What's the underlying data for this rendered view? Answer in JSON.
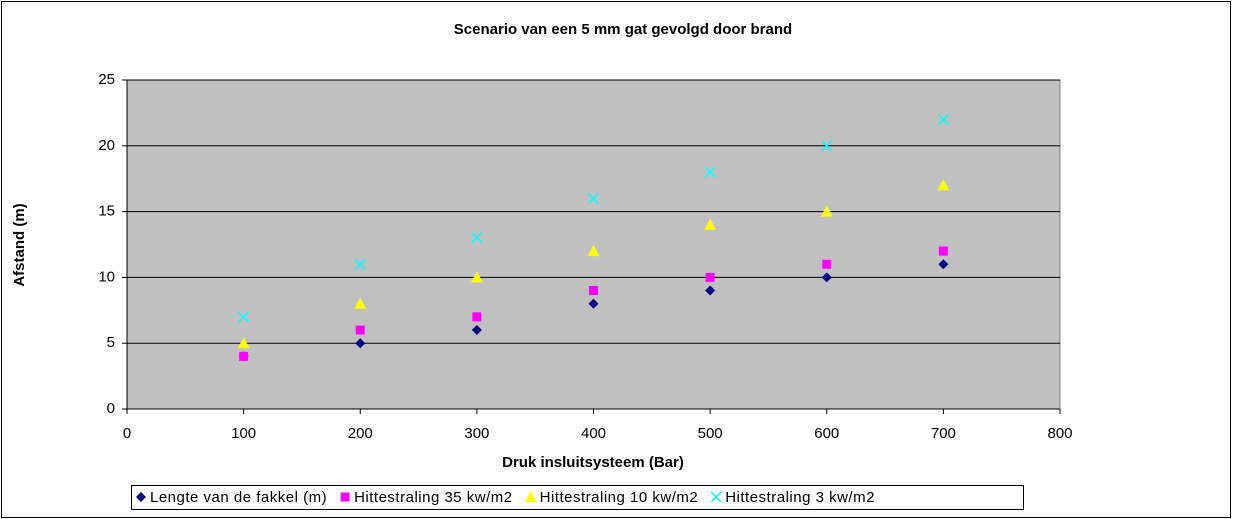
{
  "chart_data": {
    "type": "scatter",
    "title": "Scenario van een 5 mm gat gevolgd door brand",
    "x_label": "Druk insluitsysteem (Bar)",
    "y_label": "Afstand (m)",
    "x": [
      100,
      200,
      300,
      400,
      500,
      600,
      700
    ],
    "series": [
      {
        "name": "Lengte van de  fakkel (m)",
        "color": "#000080",
        "marker": "diamond",
        "values": [
          4,
          5,
          6,
          8,
          9,
          10,
          11
        ]
      },
      {
        "name": "Hittestraling 35 kw/m2",
        "color": "#ff00ff",
        "marker": "square",
        "values": [
          4,
          6,
          7,
          9,
          10,
          11,
          12
        ]
      },
      {
        "name": "Hittestraling 10 kw/m2",
        "color": "#ffff00",
        "marker": "triangle",
        "values": [
          5,
          8,
          10,
          12,
          14,
          15,
          17
        ]
      },
      {
        "name": "Hittestraling 3 kw/m2",
        "color": "#00ffff",
        "marker": "x",
        "values": [
          7,
          11,
          13,
          16,
          18,
          20,
          22
        ]
      }
    ],
    "xlim": [
      0,
      800
    ],
    "xticks": [
      0,
      100,
      200,
      300,
      400,
      500,
      600,
      700,
      800
    ],
    "ylim": [
      0,
      25
    ],
    "yticks": [
      0,
      5,
      10,
      15,
      20,
      25
    ],
    "grid": true,
    "legend": "bottom",
    "plot_background": "#c0c0c0"
  }
}
